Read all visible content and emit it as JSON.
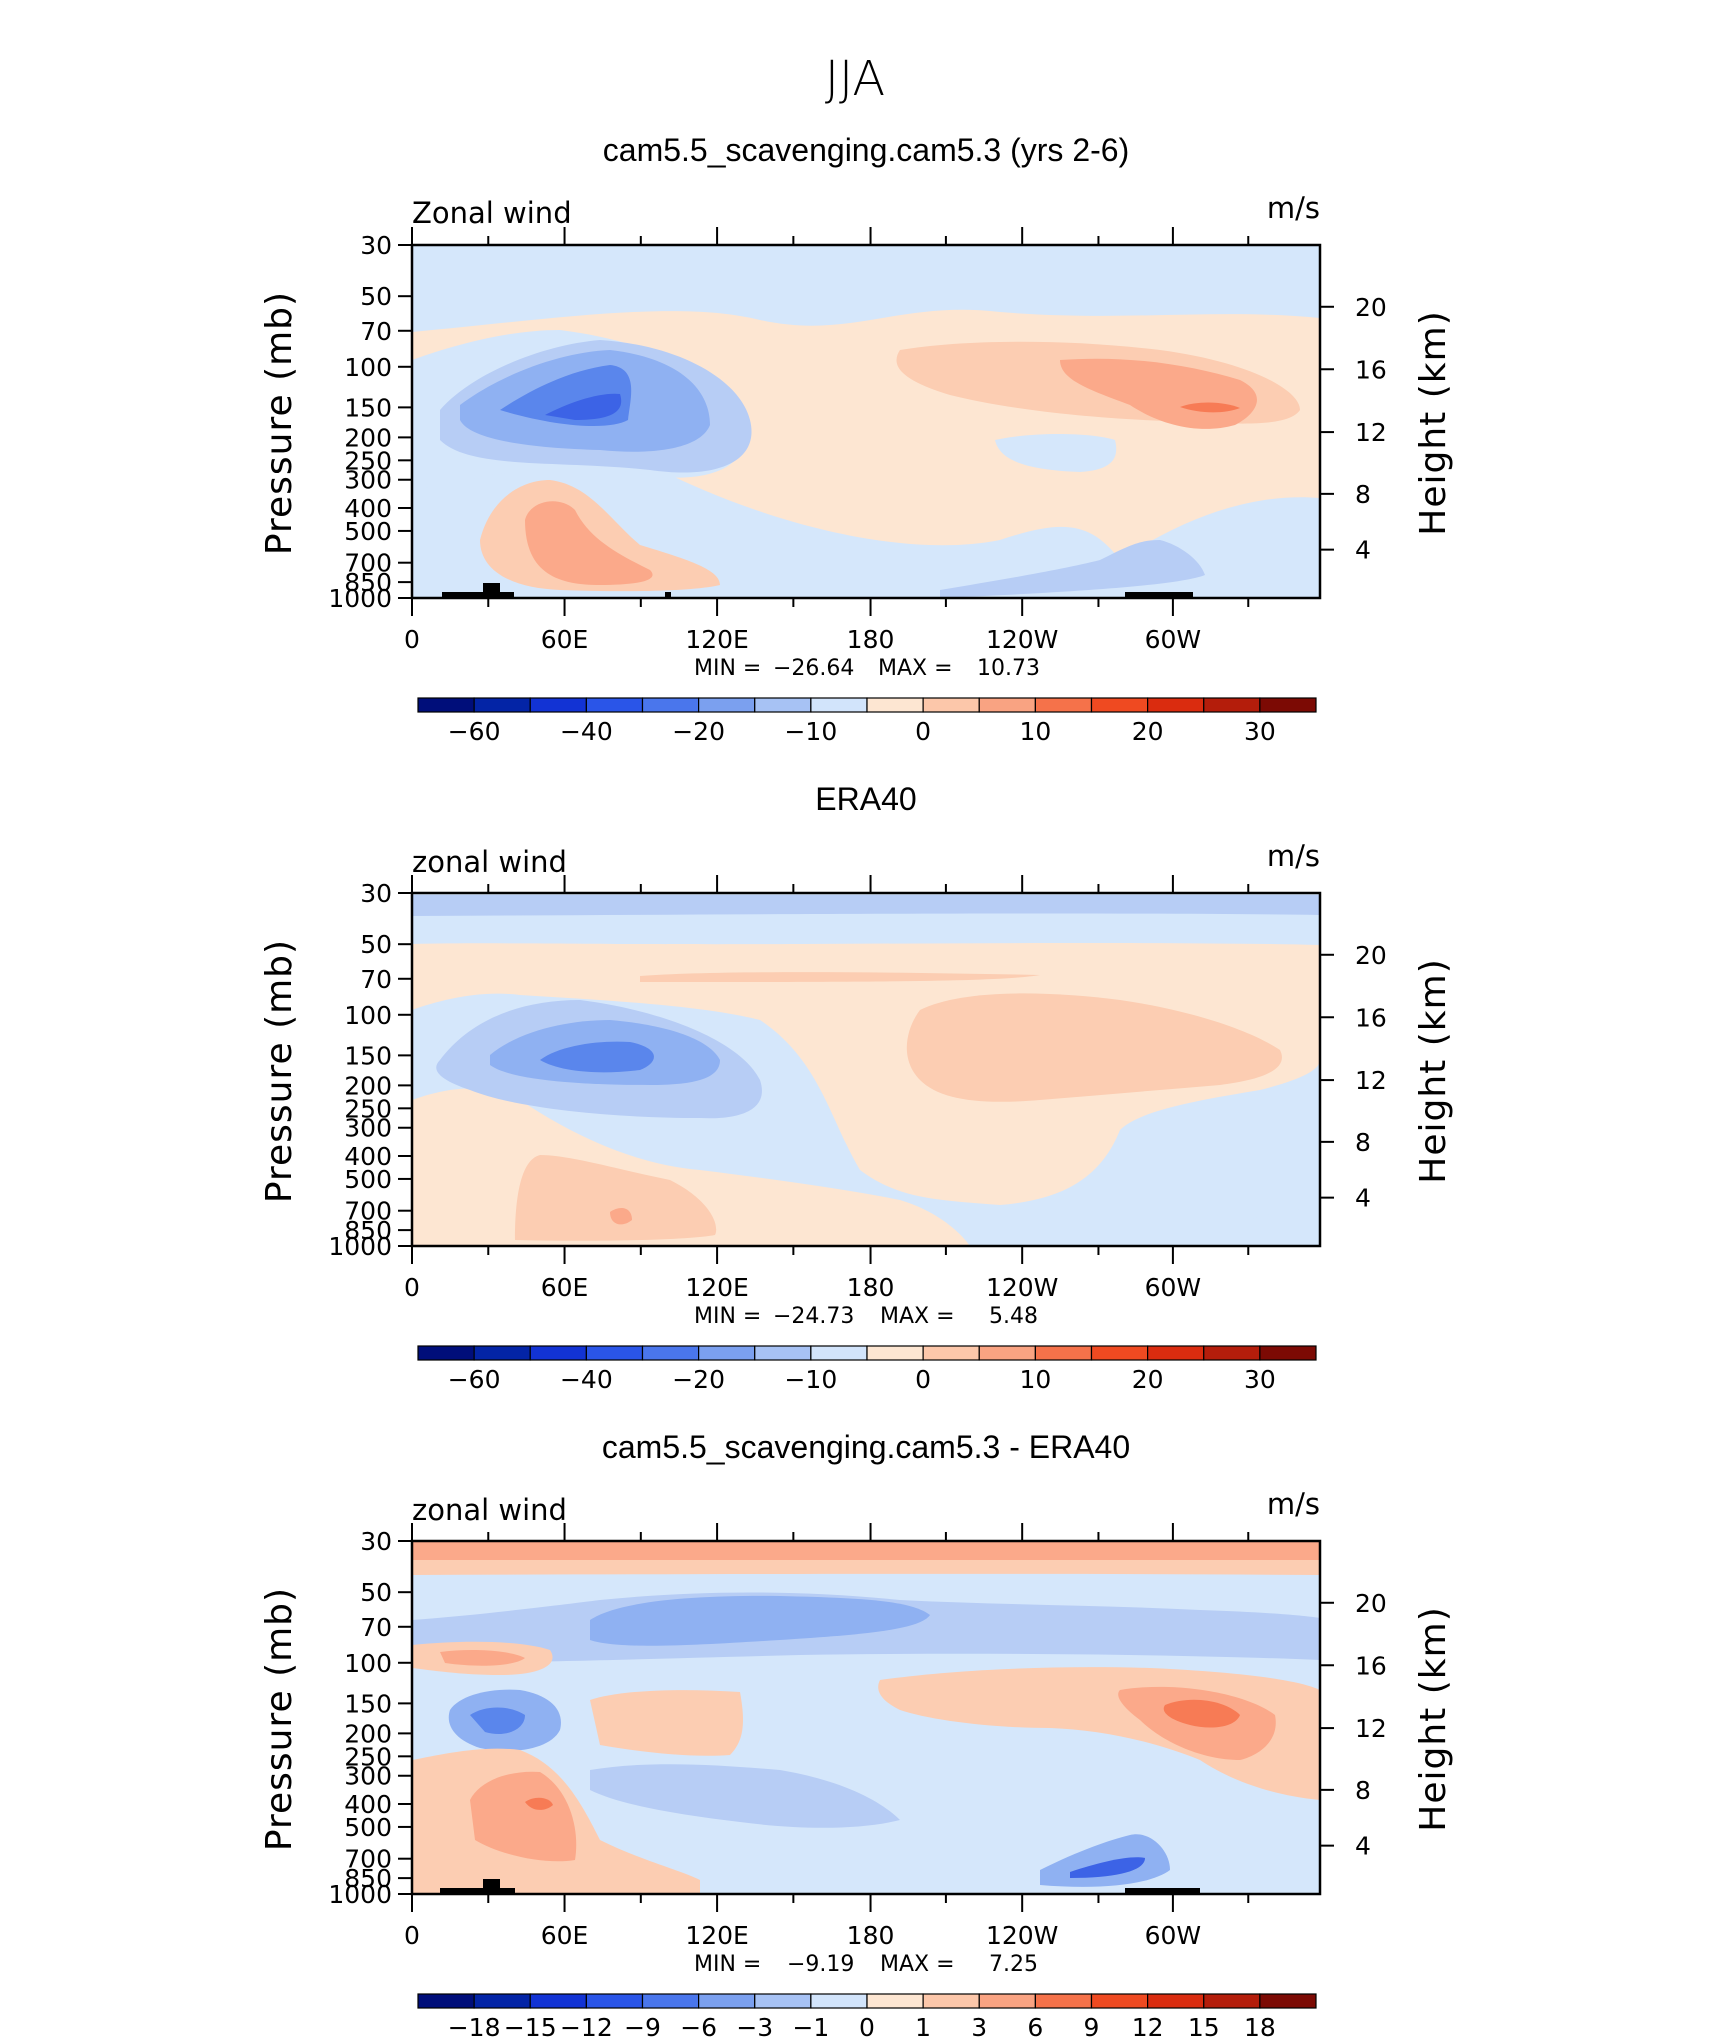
{
  "figure": {
    "title": "JJA"
  },
  "chart_data": [
    {
      "type": "heatmap",
      "title": "cam5.5_scavenging.cam5.3 (yrs 2-6)",
      "corner_left": "Zonal wind",
      "corner_right": "m/s",
      "ylabel": "Pressure (mb)",
      "ylabel_right": "Height (km)",
      "xticks": [
        "0",
        "60E",
        "120E",
        "180",
        "120W",
        "60W"
      ],
      "yticks": [
        "30",
        "50",
        "70",
        "100",
        "150",
        "200",
        "250",
        "300",
        "400",
        "500",
        "700",
        "850",
        "1000"
      ],
      "yticks_right": [
        "20",
        "16",
        "12",
        "8",
        "4"
      ],
      "min_label": "MIN =",
      "min_value": "−26.64",
      "max_label": "MAX =",
      "max_value": "10.73",
      "colorbar_labels": [
        "−60",
        "−40",
        "−20",
        "−10",
        "0",
        "10",
        "20",
        "30"
      ],
      "regions": [
        {
          "lon": 80,
          "p": 150,
          "value": -26
        },
        {
          "lon": 70,
          "p": 600,
          "value": 9
        },
        {
          "lon": 290,
          "p": 140,
          "value": 10
        },
        {
          "lon": 250,
          "p": 800,
          "value": -7
        }
      ]
    },
    {
      "type": "heatmap",
      "title": "ERA40",
      "corner_left": "zonal wind",
      "corner_right": "m/s",
      "ylabel": "Pressure (mb)",
      "ylabel_right": "Height (km)",
      "xticks": [
        "0",
        "60E",
        "120E",
        "180",
        "120W",
        "60W"
      ],
      "yticks": [
        "30",
        "50",
        "70",
        "100",
        "150",
        "200",
        "250",
        "300",
        "400",
        "500",
        "700",
        "850",
        "1000"
      ],
      "yticks_right": [
        "20",
        "16",
        "12",
        "8",
        "4"
      ],
      "min_label": "MIN =",
      "min_value": "−24.73",
      "max_label": "MAX =",
      "max_value": "5.48",
      "colorbar_labels": [
        "−60",
        "−40",
        "−20",
        "−10",
        "0",
        "10",
        "20",
        "30"
      ],
      "regions": [
        {
          "lon": 85,
          "p": 150,
          "value": -24
        },
        {
          "lon": 80,
          "p": 650,
          "value": 5
        },
        {
          "lon": 260,
          "p": 150,
          "value": 5
        }
      ]
    },
    {
      "type": "heatmap",
      "title": "cam5.5_scavenging.cam5.3 - ERA40",
      "corner_left": "zonal wind",
      "corner_right": "m/s",
      "ylabel": "Pressure (mb)",
      "ylabel_right": "Height (km)",
      "xticks": [
        "0",
        "60E",
        "120E",
        "180",
        "120W",
        "60W"
      ],
      "yticks": [
        "30",
        "50",
        "70",
        "100",
        "150",
        "200",
        "250",
        "300",
        "400",
        "500",
        "700",
        "850",
        "1000"
      ],
      "yticks_right": [
        "20",
        "16",
        "12",
        "8",
        "4"
      ],
      "min_label": "MIN =",
      "min_value": "−9.19",
      "max_label": "MAX =",
      "max_value": "7.25",
      "colorbar_labels": [
        "−18",
        "−15",
        "−12",
        "−9",
        "−6",
        "−3",
        "−1",
        "0",
        "1",
        "3",
        "6",
        "9",
        "12",
        "15",
        "18"
      ],
      "regions": [
        {
          "lon": 80,
          "p": 60,
          "value": -5
        },
        {
          "lon": 30,
          "p": 170,
          "value": -9
        },
        {
          "lon": 50,
          "p": 420,
          "value": 6
        },
        {
          "lon": 305,
          "p": 160,
          "value": 7
        },
        {
          "lon": 290,
          "p": 800,
          "value": -8
        }
      ]
    }
  ]
}
